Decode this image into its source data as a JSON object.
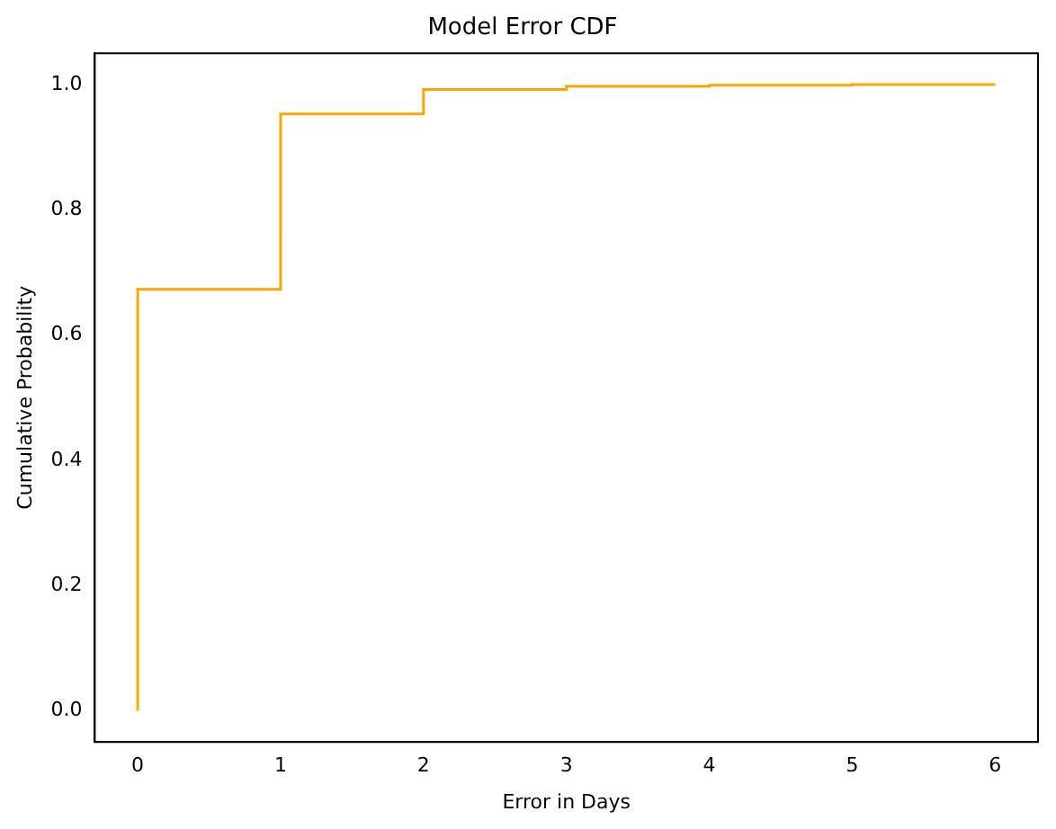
{
  "chart_data": {
    "type": "step",
    "title": "Model Error CDF",
    "xlabel": "Error in Days",
    "ylabel": "Cumulative Probability",
    "x": [
      0,
      0,
      1,
      2,
      3,
      4,
      5,
      6
    ],
    "series": [
      {
        "color": "#ffa500",
        "values": [
          0,
          0.673,
          0.953,
          0.992,
          0.997,
          0.999,
          1.0,
          1.0
        ]
      }
    ],
    "xlim": [
      -0.3,
      6.3
    ],
    "xticks": [
      0,
      1,
      2,
      3,
      4,
      5,
      6
    ],
    "ylim": [
      -0.05,
      1.05
    ],
    "yticks": [
      {
        "value": 0,
        "label": "0.0"
      },
      {
        "value": 0.2,
        "label": "0.2"
      },
      {
        "value": 0.4,
        "label": "0.4"
      },
      {
        "value": 0.6,
        "label": "0.6"
      },
      {
        "value": 0.8,
        "label": "0.8"
      },
      {
        "value": 1,
        "label": "1.0"
      }
    ],
    "grid": false,
    "legend": false
  }
}
